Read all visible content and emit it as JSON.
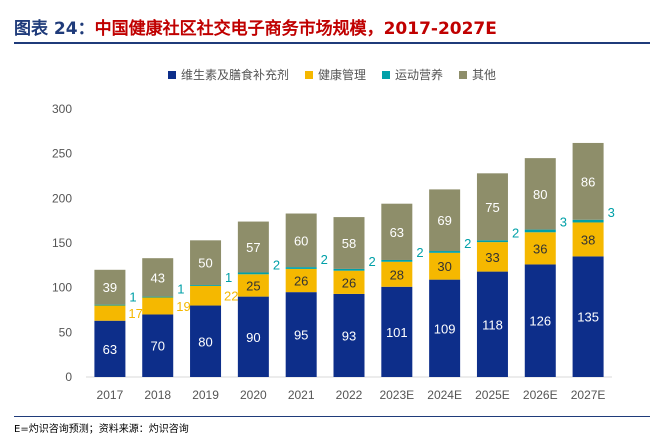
{
  "header": {
    "figure_no": "图表 24：",
    "title": "中国健康社区社交电子商务市场规模，2017-2027E"
  },
  "footnote": "E=灼识咨询预测；资料来源：灼识咨询",
  "colors": {
    "nutrition": "#0d2e8a",
    "health_mgmt": "#f5b800",
    "fitness": "#00a0a8",
    "other": "#8e8e6a",
    "axis": "#d9d9d9",
    "title_blue": "#1f3b7a",
    "title_red": "#c00000"
  },
  "chart_data": {
    "type": "bar",
    "stacked": true,
    "categories": [
      "2017",
      "2018",
      "2019",
      "2020",
      "2021",
      "2022",
      "2023E",
      "2024E",
      "2025E",
      "2026E",
      "2027E"
    ],
    "series": [
      {
        "name": "维生素及膳食补充剂",
        "color_key": "nutrition",
        "values": [
          63,
          70,
          80,
          90,
          95,
          93,
          101,
          109,
          118,
          126,
          135
        ]
      },
      {
        "name": "健康管理",
        "color_key": "health_mgmt",
        "values": [
          17,
          19,
          22,
          25,
          26,
          26,
          28,
          30,
          33,
          36,
          38
        ]
      },
      {
        "name": "运动营养",
        "color_key": "fitness",
        "values": [
          1,
          1,
          1,
          2,
          2,
          2,
          2,
          2,
          2,
          3,
          3
        ]
      },
      {
        "name": "其他",
        "color_key": "other",
        "values": [
          39,
          43,
          50,
          57,
          60,
          58,
          63,
          69,
          75,
          80,
          86
        ]
      }
    ],
    "ylim": [
      0,
      300
    ],
    "yticks": [
      0,
      50,
      100,
      150,
      200,
      250,
      300
    ],
    "grid": false,
    "legend_position": "top",
    "xlabel": "",
    "ylabel": ""
  }
}
